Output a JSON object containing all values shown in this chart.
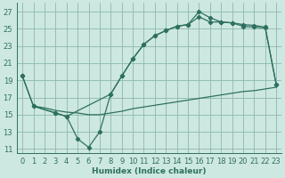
{
  "bg_color": "#cde8e0",
  "grid_color": "#8cb8b0",
  "line_color": "#2e7060",
  "xlabel": "Humidex (Indice chaleur)",
  "xlim": [
    -0.5,
    23.5
  ],
  "ylim": [
    10.5,
    28.0
  ],
  "yticks": [
    11,
    13,
    15,
    17,
    19,
    21,
    23,
    25,
    27
  ],
  "xticks": [
    0,
    1,
    2,
    3,
    4,
    5,
    6,
    7,
    8,
    9,
    10,
    11,
    12,
    13,
    14,
    15,
    16,
    17,
    18,
    19,
    20,
    21,
    22,
    23
  ],
  "curve1_x": [
    0,
    1,
    3,
    4,
    5,
    6,
    7,
    8,
    9,
    10,
    11,
    12,
    13,
    14,
    15,
    16,
    17,
    18,
    19,
    20,
    21,
    22,
    23
  ],
  "curve1_y": [
    19.5,
    16.0,
    15.2,
    14.8,
    12.2,
    11.2,
    13.0,
    17.4,
    19.5,
    21.5,
    23.2,
    24.2,
    24.8,
    25.3,
    25.5,
    27.0,
    26.3,
    25.8,
    25.7,
    25.3,
    25.2,
    25.1,
    18.5
  ],
  "curve2_x": [
    0,
    1,
    3,
    4,
    8,
    9,
    10,
    11,
    12,
    13,
    14,
    15,
    16,
    17,
    18,
    19,
    20,
    21,
    22,
    23
  ],
  "curve2_y": [
    19.5,
    16.0,
    15.2,
    14.8,
    17.4,
    19.5,
    21.5,
    23.2,
    24.2,
    24.8,
    25.3,
    25.5,
    26.4,
    25.8,
    25.8,
    25.7,
    25.5,
    25.4,
    25.2,
    18.5
  ],
  "line3_x": [
    1,
    2,
    3,
    4,
    5,
    6,
    7,
    8,
    9,
    10,
    11,
    12,
    13,
    14,
    15,
    16,
    17,
    18,
    19,
    20,
    21,
    22,
    23
  ],
  "line3_y": [
    16.0,
    15.8,
    15.5,
    15.3,
    15.2,
    15.0,
    15.0,
    15.2,
    15.4,
    15.7,
    15.9,
    16.1,
    16.3,
    16.5,
    16.7,
    16.9,
    17.1,
    17.3,
    17.5,
    17.7,
    17.8,
    18.0,
    18.2
  ]
}
